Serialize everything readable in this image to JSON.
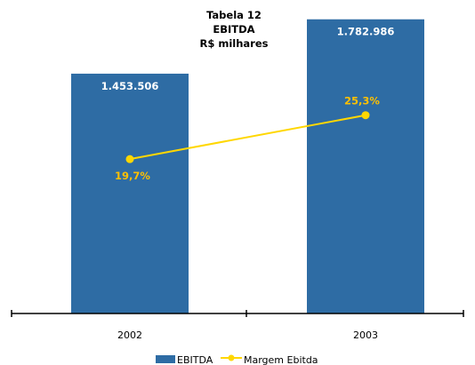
{
  "chart_data": {
    "type": "bar",
    "title_lines": [
      "Tabela 12",
      "EBITDA",
      "R$ milhares"
    ],
    "categories": [
      "2002",
      "2003"
    ],
    "series": [
      {
        "name": "EBITDA",
        "type": "bar",
        "values": [
          1453506,
          1782986
        ],
        "labels": [
          "1.453.506",
          "1.782.986"
        ],
        "color": "#2e6ca4"
      },
      {
        "name": "Margem Ebitda",
        "type": "line",
        "values": [
          19.7,
          25.3
        ],
        "labels": [
          "19,7%",
          "25,3%"
        ],
        "color": "#ffd700"
      }
    ],
    "bar_axis": {
      "min": 0,
      "max": 1900000
    },
    "line_axis": {
      "min": 0,
      "max": 40
    },
    "grid": false,
    "legend_position": "bottom"
  }
}
